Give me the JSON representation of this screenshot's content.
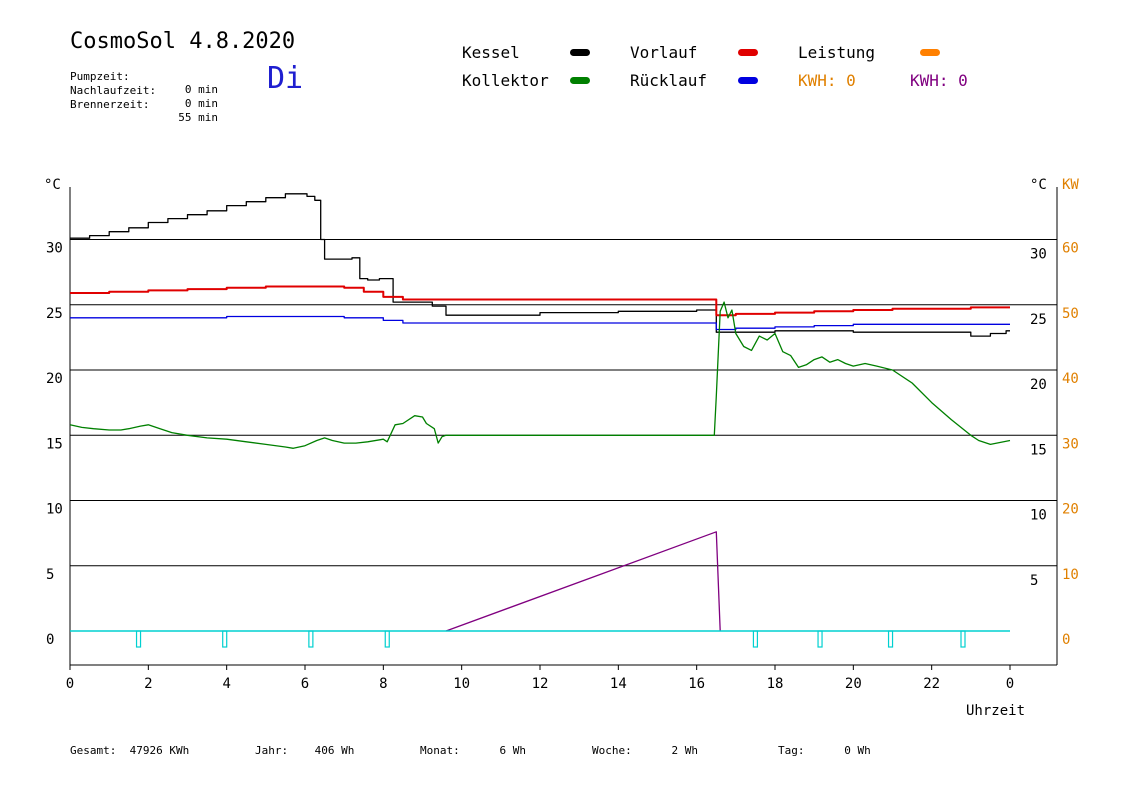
{
  "header": {
    "title": "CosmoSol 4.8.2020",
    "weekday": "Di",
    "info": [
      {
        "label": "Pumpzeit:",
        "value": "0 min"
      },
      {
        "label": "Nachlaufzeit:",
        "value": "0 min"
      },
      {
        "label": "Brennerzeit:",
        "value": "55 min"
      }
    ]
  },
  "legend": {
    "kessel": "Kessel",
    "kollektor": "Kollektor",
    "vorlauf": "Vorlauf",
    "ruecklauf": "Rücklauf",
    "leistung": "Leistung",
    "kwh_orange": "KWH: 0",
    "kwh_purple": "KWH: 0"
  },
  "colors": {
    "kessel": "#000000",
    "kollektor": "#008000",
    "vorlauf": "#e00000",
    "ruecklauf": "#0000e0",
    "leistung": "#ff8000",
    "kwh_purple": "#800080",
    "pump": "#00d0d0",
    "weekday": "#1f1fd0"
  },
  "footer": {
    "gesamt": "Gesamt:  47926 KWh",
    "jahr": "Jahr:    406 Wh",
    "monat": "Monat:      6 Wh",
    "woche": "Woche:      2 Wh",
    "tag": "Tag:      0 Wh"
  },
  "chart_data": {
    "type": "line",
    "xlabel": "Uhrzeit",
    "ylabel_left": "°C",
    "ylabel_right": "°C",
    "ylabel_right2": "KW",
    "xlim": [
      0,
      24
    ],
    "ylim": [
      -2.6,
      35
    ],
    "x_tick_labels": [
      "0",
      "2",
      "4",
      "6",
      "8",
      "10",
      "12",
      "14",
      "16",
      "18",
      "20",
      "22",
      "0"
    ],
    "y_left_ticks": [
      0,
      5,
      10,
      15,
      20,
      25,
      30
    ],
    "y_right_ticks": [
      5,
      10,
      15,
      20,
      25,
      30
    ],
    "kw_ticks": [
      0,
      10,
      20,
      30,
      40,
      50,
      60
    ],
    "grid": "horizontal",
    "series": [
      {
        "name": "Kessel",
        "color": "#000000",
        "step": true,
        "x": [
          0,
          0.5,
          1,
          1.5,
          2,
          2.5,
          3,
          3.5,
          4,
          4.5,
          5,
          5.5,
          5.8,
          6.05,
          6.25,
          6.4,
          6.5,
          7,
          7.2,
          7.4,
          7.6,
          7.9,
          8.15,
          8.25,
          8.5,
          9,
          9.25,
          9.5,
          9.6,
          10,
          12,
          14,
          16,
          16.45,
          16.5,
          16.6,
          17,
          18,
          19,
          20,
          21,
          22,
          22.8,
          23,
          23.5,
          23.9,
          24
        ],
        "y": [
          30.1,
          30.3,
          30.6,
          30.9,
          31.3,
          31.6,
          31.9,
          32.2,
          32.6,
          32.9,
          33.2,
          33.5,
          33.5,
          33.3,
          33.0,
          30.0,
          28.5,
          28.5,
          28.6,
          27.0,
          26.9,
          27.0,
          27.0,
          25.2,
          25.2,
          25.2,
          24.9,
          24.9,
          24.2,
          24.2,
          24.4,
          24.5,
          24.6,
          24.6,
          22.9,
          22.9,
          22.9,
          23.0,
          23.0,
          22.9,
          22.9,
          22.9,
          22.9,
          22.6,
          22.8,
          23.0,
          23.0
        ]
      },
      {
        "name": "Vorlauf",
        "color": "#e00000",
        "step": true,
        "x": [
          0,
          1,
          2,
          3,
          4,
          5,
          6,
          6.5,
          7,
          7.5,
          8,
          8.5,
          9,
          9.5,
          10,
          12,
          14,
          16,
          16.45,
          16.5,
          17,
          18,
          19,
          20,
          21,
          22,
          23,
          23.5,
          24
        ],
        "y": [
          25.9,
          26.0,
          26.1,
          26.2,
          26.3,
          26.4,
          26.4,
          26.4,
          26.3,
          26.0,
          25.6,
          25.4,
          25.4,
          25.4,
          25.4,
          25.4,
          25.4,
          25.4,
          25.4,
          24.2,
          24.3,
          24.4,
          24.5,
          24.6,
          24.7,
          24.7,
          24.8,
          24.8,
          24.8
        ]
      },
      {
        "name": "Rücklauf",
        "color": "#0000e0",
        "step": true,
        "x": [
          0,
          2,
          4,
          6,
          7,
          8,
          8.5,
          9,
          10,
          12,
          14,
          16,
          16.45,
          16.5,
          17,
          18,
          19,
          20,
          21,
          22,
          23,
          24
        ],
        "y": [
          24.0,
          24.0,
          24.1,
          24.1,
          24.0,
          23.8,
          23.6,
          23.6,
          23.6,
          23.6,
          23.6,
          23.6,
          23.6,
          23.1,
          23.2,
          23.3,
          23.4,
          23.5,
          23.5,
          23.5,
          23.5,
          23.5
        ]
      },
      {
        "name": "Kollektor",
        "color": "#008000",
        "step": false,
        "x": [
          0,
          0.3,
          0.6,
          1,
          1.3,
          1.5,
          1.8,
          2.0,
          2.3,
          2.6,
          3,
          3.5,
          4,
          4.5,
          5,
          5.5,
          5.7,
          6,
          6.3,
          6.5,
          6.7,
          7,
          7.3,
          7.6,
          8,
          8.1,
          8.3,
          8.5,
          8.8,
          9,
          9.1,
          9.3,
          9.4,
          9.5,
          9.6,
          10,
          11,
          12,
          13,
          14,
          15,
          16,
          16.45,
          16.5,
          16.6,
          16.7,
          16.8,
          16.9,
          17,
          17.2,
          17.4,
          17.6,
          17.8,
          18,
          18.2,
          18.4,
          18.6,
          18.8,
          19,
          19.2,
          19.4,
          19.6,
          19.8,
          20,
          20.3,
          20.6,
          21,
          21.5,
          22,
          22.5,
          23,
          23.2,
          23.5,
          24
        ],
        "y": [
          15.8,
          15.6,
          15.5,
          15.4,
          15.4,
          15.5,
          15.7,
          15.8,
          15.5,
          15.2,
          15.0,
          14.8,
          14.7,
          14.5,
          14.3,
          14.1,
          14.0,
          14.2,
          14.6,
          14.8,
          14.6,
          14.4,
          14.4,
          14.5,
          14.7,
          14.5,
          15.8,
          15.9,
          16.5,
          16.4,
          15.9,
          15.5,
          14.4,
          14.9,
          15.0,
          15.0,
          15.0,
          15.0,
          15.0,
          15.0,
          15.0,
          15.0,
          15.0,
          18.0,
          24.5,
          25.2,
          24.0,
          24.6,
          22.8,
          21.8,
          21.5,
          22.6,
          22.3,
          22.8,
          21.4,
          21.1,
          20.2,
          20.4,
          20.8,
          21.0,
          20.6,
          20.8,
          20.5,
          20.3,
          20.5,
          20.3,
          20.0,
          19.0,
          17.5,
          16.2,
          15.0,
          14.6,
          14.3,
          14.6
        ]
      },
      {
        "name": "KWH",
        "color": "#800080",
        "step": false,
        "x": [
          9.6,
          16.5,
          16.6
        ],
        "y": [
          0,
          7.6,
          0
        ]
      },
      {
        "name": "Pumpe",
        "color": "#00d0d0",
        "type": "pulses",
        "baseline": 0,
        "pulses": [
          1.75,
          3.95,
          6.15,
          8.1,
          17.5,
          19.15,
          20.95,
          22.8
        ]
      }
    ]
  }
}
